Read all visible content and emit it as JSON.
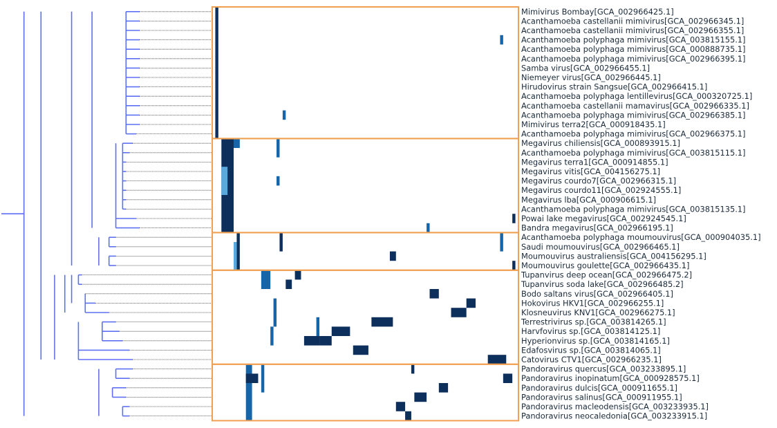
{
  "chart_data": {
    "type": "heatmap",
    "title": "",
    "xlabel": "",
    "ylabel": "",
    "colors": {
      "dendrogram": "#5f6ff2",
      "leaf_dots": "#333333",
      "cluster_box": "#f0a050",
      "cell_dark": "#0d2f5c",
      "cell_mid": "#1565a8",
      "cell_light": "#5aa9dd"
    },
    "rows": [
      "Mimivirus Bombay[GCA_002966425.1]",
      "Acanthamoeba castellanii mimivirus[GCA_002966345.1]",
      "Acanthamoeba castellanii mimivirus[GCA_002966355.1]",
      "Acanthamoeba polyphaga mimivirus[GCA_003815155.1]",
      "Acanthamoeba polyphaga mimivirus[GCA_000888735.1]",
      "Acanthamoeba polyphaga mimivirus[GCA_002966395.1]",
      "Samba virus[GCA_002966455.1]",
      "Niemeyer virus[GCA_002966445.1]",
      "Hirudovirus strain Sangsue[GCA_002966415.1]",
      "Acanthamoeba polyphaga lentillevirus[GCA_000320725.1]",
      "Acanthamoeba castellanii mamavirus[GCA_002966335.1]",
      "Acanthamoeba polyphaga mimivirus[GCA_002966385.1]",
      "Mimivirus terra2[GCA_000918435.1]",
      "Acanthamoeba polyphaga mimivirus[GCA_002966375.1]",
      "Megavirus chiliensis[GCA_000893915.1]",
      "Acanthamoeba polyphaga mimivirus[GCA_003815115.1]",
      "Megavirus terra1[GCA_000914855.1]",
      "Megavirus vitis[GCA_004156275.1]",
      "Megavirus courdo7[GCA_002966315.1]",
      "Megavirus courdo11[GCA_002924555.1]",
      "Megavirus lba[GCA_000906615.1]",
      "Acanthamoeba polyphaga mimivirus[GCA_003815135.1]",
      "Powai lake megavirus[GCA_002924545.1]",
      "Bandra megavirus[GCA_002966195.1]",
      "Acanthamoeba polyphaga moumouvirus[GCA_000904035.1]",
      "Saudi moumouvirus[GCA_002966465.1]",
      "Moumouvirus australiensis[GCA_004156295.1]",
      "Moumouvirus goulette[GCA_002966435.1]",
      "Tupanvirus deep ocean[GCA_002966475.2]",
      "Tupanvirus soda lake[GCA_002966485.2]",
      "Bodo saltans virus[GCA_002966405.1]",
      "Hokovirus HKV1[GCA_002966255.1]",
      "Klosneuvirus KNV1[GCA_002966275.1]",
      "Terrestrivirus sp.[GCA_003814265.1]",
      "Harvfovirus sp.[GCA_003814125.1]",
      "Hyperionvirus sp.[GCA_003814165.1]",
      "Edafosvirus sp.[GCA_003814065.1]",
      "Catovirus CTV1[GCA_002966235.1]",
      "Pandoravirus quercus[GCA_003233895.1]",
      "Pandoravirus inopinatum[GCA_000928575.1]",
      "Pandoravirus dulcis[GCA_000911655.1]",
      "Pandoravirus salinus[GCA_000911955.1]",
      "Pandoravirus macleodensis[GCA_003233935.1]",
      "Pandoravirus neocaledonia[GCA_003233915.1]"
    ],
    "n_columns": 100,
    "clusters": [
      {
        "first_row": 0,
        "last_row": 13
      },
      {
        "first_row": 14,
        "last_row": 23
      },
      {
        "first_row": 24,
        "last_row": 27
      },
      {
        "first_row": 28,
        "last_row": 37
      },
      {
        "first_row": 38,
        "last_row": 43
      }
    ],
    "dendrogram_leaf_depth": [
      38,
      38,
      38,
      38,
      38,
      38,
      38,
      38,
      38,
      38,
      38,
      38,
      38,
      37,
      36,
      35,
      34,
      34,
      34,
      34,
      34,
      34,
      37,
      38,
      31,
      31,
      31,
      31,
      21,
      21,
      22,
      25,
      29,
      31,
      32,
      33,
      35,
      36,
      36,
      35,
      34,
      34,
      35,
      35
    ],
    "dendrogram_merges": [
      {
        "a": 0,
        "b": 13,
        "h": 34
      },
      {
        "a": 14,
        "b": 21,
        "h": 33
      },
      {
        "a": 14,
        "b": 23,
        "h": 31
      },
      {
        "a": 0,
        "b": 23,
        "h": 24
      },
      {
        "a": 24,
        "b": 25,
        "h": 29
      },
      {
        "a": 26,
        "b": 27,
        "h": 29
      },
      {
        "a": 24,
        "b": 27,
        "h": 26
      },
      {
        "a": 0,
        "b": 27,
        "h": 18
      },
      {
        "a": 28,
        "b": 29,
        "h": 20
      },
      {
        "a": 28,
        "b": 31,
        "h": 18
      },
      {
        "a": 30,
        "b": 32,
        "h": 22
      },
      {
        "a": 28,
        "b": 32,
        "h": 16
      },
      {
        "a": 33,
        "b": 35,
        "h": 27
      },
      {
        "a": 33,
        "b": 37,
        "h": 20
      },
      {
        "a": 28,
        "b": 37,
        "h": 13
      },
      {
        "a": 0,
        "b": 37,
        "h": 9
      },
      {
        "a": 38,
        "b": 39,
        "h": 31
      },
      {
        "a": 40,
        "b": 41,
        "h": 30
      },
      {
        "a": 42,
        "b": 43,
        "h": 33
      },
      {
        "a": 38,
        "b": 43,
        "h": 26
      },
      {
        "a": 0,
        "b": 43,
        "h": 4
      }
    ],
    "cells": [
      {
        "r0": 0,
        "r1": 13,
        "c0": 1,
        "c1": 2,
        "v": 3
      },
      {
        "r0": 14,
        "r1": 23,
        "c0": 3,
        "c1": 7,
        "v": 3
      },
      {
        "r0": 14,
        "r1": 14,
        "c0": 7,
        "c1": 9,
        "v": 2
      },
      {
        "r0": 17,
        "r1": 19,
        "c0": 3,
        "c1": 5,
        "v": 1
      },
      {
        "r0": 24,
        "r1": 27,
        "c0": 8,
        "c1": 9,
        "v": 3
      },
      {
        "r0": 25,
        "r1": 27,
        "c0": 7,
        "c1": 8,
        "v": 1
      },
      {
        "r0": 24,
        "r1": 25,
        "c0": 22,
        "c1": 23,
        "v": 3
      },
      {
        "r0": 26,
        "r1": 26,
        "c0": 58,
        "c1": 60,
        "v": 3
      },
      {
        "r0": 27,
        "r1": 27,
        "c0": 98,
        "c1": 99,
        "v": 3
      },
      {
        "r0": 28,
        "r1": 29,
        "c0": 16,
        "c1": 19,
        "v": 2
      },
      {
        "r0": 28,
        "r1": 28,
        "c0": 27,
        "c1": 29,
        "v": 3
      },
      {
        "r0": 29,
        "r1": 29,
        "c0": 24,
        "c1": 26,
        "v": 3
      },
      {
        "r0": 30,
        "r1": 30,
        "c0": 71,
        "c1": 74,
        "v": 3
      },
      {
        "r0": 31,
        "r1": 31,
        "c0": 83,
        "c1": 86,
        "v": 3
      },
      {
        "r0": 32,
        "r1": 32,
        "c0": 78,
        "c1": 83,
        "v": 3
      },
      {
        "r0": 33,
        "r1": 33,
        "c0": 52,
        "c1": 59,
        "v": 3
      },
      {
        "r0": 34,
        "r1": 34,
        "c0": 39,
        "c1": 45,
        "v": 3
      },
      {
        "r0": 35,
        "r1": 35,
        "c0": 30,
        "c1": 35,
        "v": 3
      },
      {
        "r0": 35,
        "r1": 35,
        "c0": 35,
        "c1": 39,
        "v": 3
      },
      {
        "r0": 36,
        "r1": 36,
        "c0": 46,
        "c1": 51,
        "v": 3
      },
      {
        "r0": 37,
        "r1": 37,
        "c0": 90,
        "c1": 96,
        "v": 3
      },
      {
        "r0": 38,
        "r1": 43,
        "c0": 11,
        "c1": 13,
        "v": 2
      },
      {
        "r0": 39,
        "r1": 39,
        "c0": 11,
        "c1": 15,
        "v": 3
      },
      {
        "r0": 38,
        "r1": 38,
        "c0": 65,
        "c1": 66,
        "v": 3
      },
      {
        "r0": 39,
        "r1": 39,
        "c0": 95,
        "c1": 98,
        "v": 3
      },
      {
        "r0": 40,
        "r1": 40,
        "c0": 74,
        "c1": 77,
        "v": 3
      },
      {
        "r0": 41,
        "r1": 41,
        "c0": 66,
        "c1": 70,
        "v": 3
      },
      {
        "r0": 42,
        "r1": 42,
        "c0": 60,
        "c1": 63,
        "v": 3
      },
      {
        "r0": 43,
        "r1": 43,
        "c0": 63,
        "c1": 65,
        "v": 3
      },
      {
        "r0": 3,
        "r1": 3,
        "c0": 94,
        "c1": 95,
        "v": 2
      },
      {
        "r0": 11,
        "r1": 11,
        "c0": 23,
        "c1": 24,
        "v": 2
      },
      {
        "r0": 14,
        "r1": 15,
        "c0": 21,
        "c1": 22,
        "v": 2
      },
      {
        "r0": 18,
        "r1": 18,
        "c0": 21,
        "c1": 22,
        "v": 2
      },
      {
        "r0": 22,
        "r1": 22,
        "c0": 98,
        "c1": 99,
        "v": 3
      },
      {
        "r0": 23,
        "r1": 23,
        "c0": 70,
        "c1": 71,
        "v": 2
      },
      {
        "r0": 24,
        "r1": 25,
        "c0": 94,
        "c1": 95,
        "v": 2
      },
      {
        "r0": 31,
        "r1": 33,
        "c0": 20,
        "c1": 21,
        "v": 2
      },
      {
        "r0": 33,
        "r1": 34,
        "c0": 34,
        "c1": 35,
        "v": 2
      },
      {
        "r0": 34,
        "r1": 35,
        "c0": 19,
        "c1": 20,
        "v": 2
      },
      {
        "r0": 38,
        "r1": 40,
        "c0": 16,
        "c1": 17,
        "v": 2
      }
    ]
  }
}
